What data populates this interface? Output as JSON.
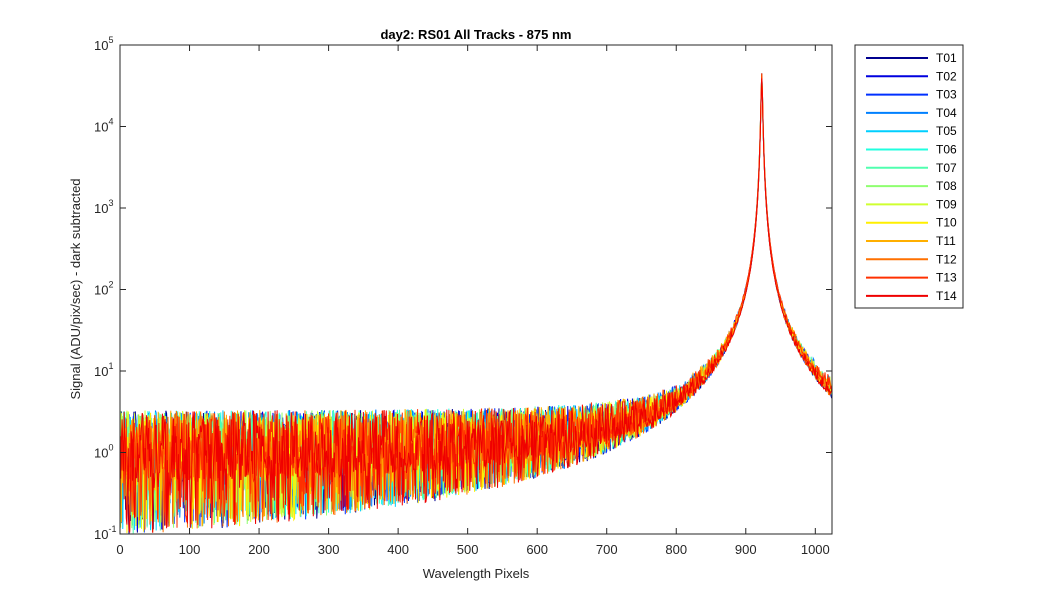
{
  "chart_data": {
    "type": "line",
    "title": "day2: RS01  All Tracks - 875 nm",
    "xlabel": "Wavelength Pixels",
    "ylabel": "Signal (ADU/pix/sec) - dark subtracted",
    "xlim": [
      0,
      1024
    ],
    "ylim": [
      0.1,
      100000
    ],
    "yscale": "log",
    "x_ticks": [
      0,
      100,
      200,
      300,
      400,
      500,
      600,
      700,
      800,
      900,
      1000
    ],
    "y_ticks": [
      {
        "base": "10",
        "exp": "-1",
        "value": 0.1
      },
      {
        "base": "10",
        "exp": "0",
        "value": 1
      },
      {
        "base": "10",
        "exp": "1",
        "value": 10
      },
      {
        "base": "10",
        "exp": "2",
        "value": 100
      },
      {
        "base": "10",
        "exp": "3",
        "value": 1000
      },
      {
        "base": "10",
        "exp": "4",
        "value": 10000
      },
      {
        "base": "10",
        "exp": "5",
        "value": 100000
      }
    ],
    "grid": false,
    "legend_position": "outside-top-right",
    "peak": {
      "x": 923,
      "y": 45000
    },
    "series": [
      {
        "name": "T01",
        "color": "#00008F"
      },
      {
        "name": "T02",
        "color": "#0000DF"
      },
      {
        "name": "T03",
        "color": "#0030FF"
      },
      {
        "name": "T04",
        "color": "#0080FF"
      },
      {
        "name": "T05",
        "color": "#00CFFF"
      },
      {
        "name": "T06",
        "color": "#20FFDF"
      },
      {
        "name": "T07",
        "color": "#50FFAF"
      },
      {
        "name": "T08",
        "color": "#8FFF70"
      },
      {
        "name": "T09",
        "color": "#CFFF30"
      },
      {
        "name": "T10",
        "color": "#FFEF00"
      },
      {
        "name": "T11",
        "color": "#FFAF00"
      },
      {
        "name": "T12",
        "color": "#FF7000"
      },
      {
        "name": "T13",
        "color": "#FF3000"
      },
      {
        "name": "T14",
        "color": "#EF0000"
      }
    ]
  }
}
